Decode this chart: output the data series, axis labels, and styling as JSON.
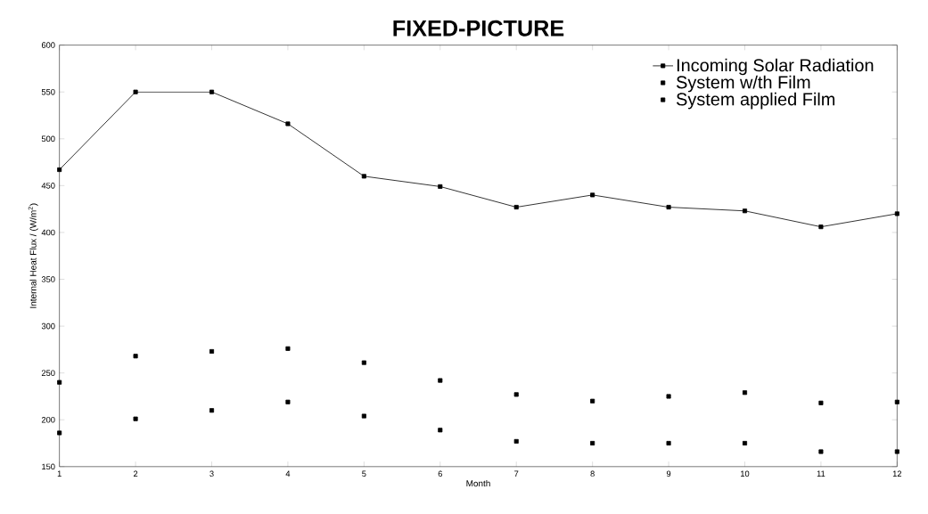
{
  "chart_data": {
    "type": "line",
    "title": "FIXED-PICTURE",
    "xlabel": "Month",
    "ylabel": "Internal Heat Flux / (W/m$^{2}$)",
    "x": [
      1,
      2,
      3,
      4,
      5,
      6,
      7,
      8,
      9,
      10,
      11,
      12
    ],
    "series": [
      {
        "name": "Incoming Solar Radiation",
        "color": "#000000",
        "values": [
          467,
          550,
          550,
          516,
          460,
          449,
          427,
          440,
          427,
          423,
          406,
          420
        ]
      },
      {
        "name": "System w/th Film",
        "type": "scatter",
        "color": "#000000",
        "values": [
          240,
          268,
          273,
          276,
          261,
          242,
          227,
          220,
          225,
          229,
          218,
          219
        ]
      },
      {
        "name": "System applied Film",
        "type": "scatter",
        "color": "#000000",
        "values": [
          186,
          201,
          210,
          219,
          204,
          189,
          177,
          175,
          175,
          175,
          166,
          166
        ]
      }
    ],
    "xlim": [
      1,
      12
    ],
    "ylim": [
      150,
      600
    ],
    "xticks": [
      1,
      2,
      3,
      4,
      5,
      6,
      7,
      8,
      9,
      10,
      11,
      12
    ],
    "yticks": [
      150,
      200,
      250,
      300,
      350,
      400,
      450,
      500,
      550,
      600
    ],
    "marker": "square",
    "line_style": "solid",
    "legend": "top right",
    "grid": false
  }
}
